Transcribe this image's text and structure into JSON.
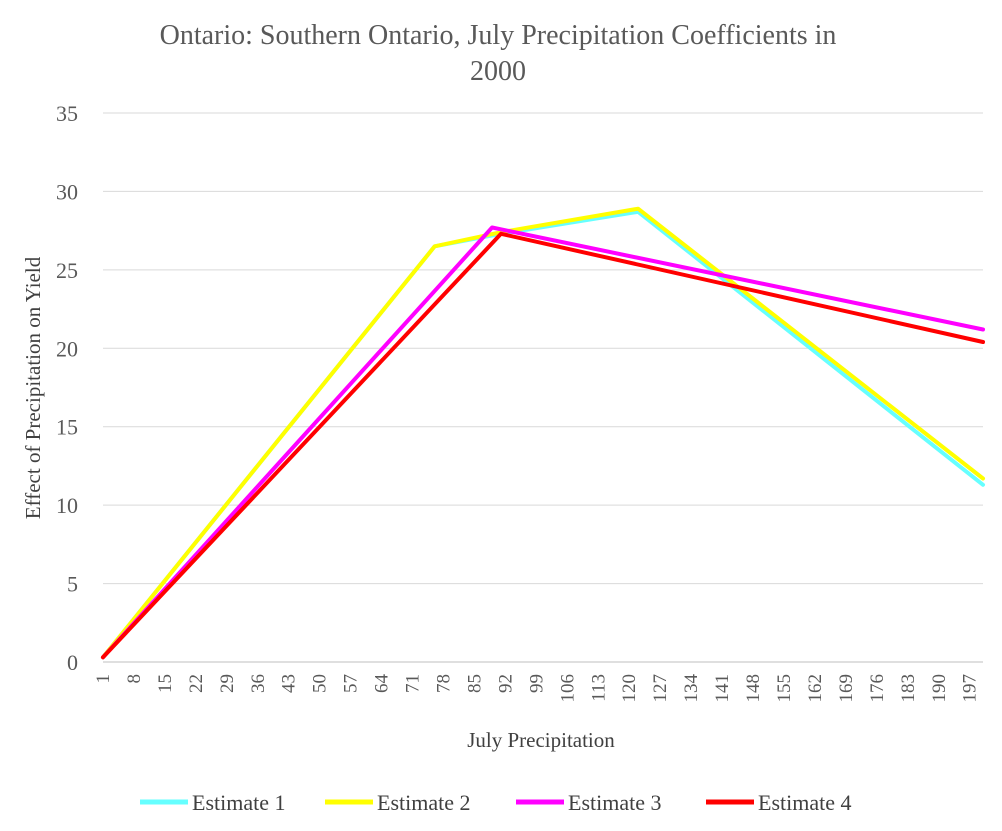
{
  "chart_data": {
    "type": "line",
    "title_line1": "Ontario: Southern Ontario, July Precipitation Coefficients in",
    "title_line2": "2000",
    "xlabel": "July Precipitation",
    "ylabel": "Effect of Precipitation on Yield",
    "ylim": [
      0,
      35
    ],
    "yticks": [
      0,
      5,
      10,
      15,
      20,
      25,
      30,
      35
    ],
    "xlim": [
      1,
      200
    ],
    "xticks": [
      "1",
      "8",
      "15",
      "22",
      "29",
      "36",
      "43",
      "50",
      "57",
      "64",
      "71",
      "78",
      "85",
      "92",
      "99",
      "106",
      "113",
      "120",
      "127",
      "134",
      "141",
      "148",
      "155",
      "162",
      "169",
      "176",
      "183",
      "190",
      "197"
    ],
    "grid": "horizontal",
    "legend_position": "bottom",
    "series": [
      {
        "name": "Estimate 1",
        "color": "#66ffff",
        "x": [
          1,
          76,
          91,
          122,
          200
        ],
        "y": [
          0.3,
          26.5,
          27.3,
          28.7,
          11.3
        ]
      },
      {
        "name": "Estimate 2",
        "color": "#ffff00",
        "x": [
          1,
          76,
          91,
          122,
          200
        ],
        "y": [
          0.3,
          26.5,
          27.4,
          28.9,
          11.7
        ]
      },
      {
        "name": "Estimate 3",
        "color": "#ff00ff",
        "x": [
          1,
          89,
          200
        ],
        "y": [
          0.3,
          27.7,
          21.2
        ]
      },
      {
        "name": "Estimate 4",
        "color": "#ff0000",
        "x": [
          1,
          91,
          200
        ],
        "y": [
          0.3,
          27.3,
          20.4
        ]
      }
    ]
  }
}
